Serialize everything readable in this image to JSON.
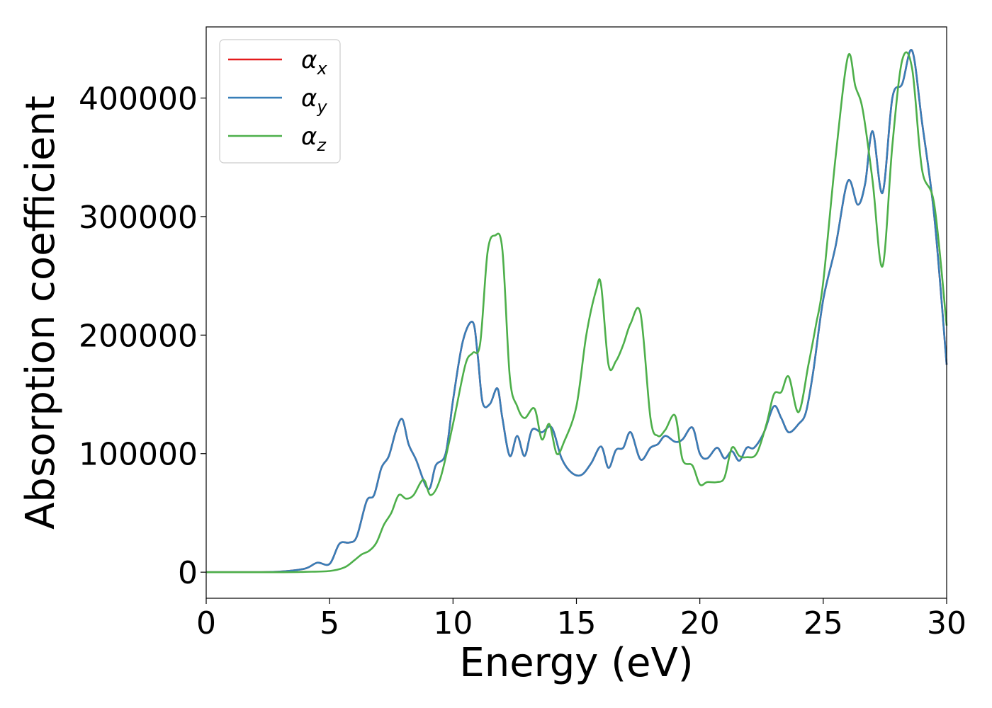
{
  "chart_data": {
    "type": "line",
    "xlabel": "Energy (eV)",
    "ylabel": "Absorption coefficient",
    "xlim": [
      0,
      30
    ],
    "ylim": [
      -22000,
      460000
    ],
    "xticks": [
      0,
      5,
      10,
      15,
      20,
      25,
      30
    ],
    "yticks": [
      0,
      100000,
      200000,
      300000,
      400000
    ],
    "xtick_labels": [
      "0",
      "5",
      "10",
      "15",
      "20",
      "25",
      "30"
    ],
    "ytick_labels": [
      "0",
      "100000",
      "200000",
      "300000",
      "400000"
    ],
    "grid": false,
    "legend": {
      "placement": "top-left",
      "entries": [
        {
          "base": "α",
          "sub": "x"
        },
        {
          "base": "α",
          "sub": "y"
        },
        {
          "base": "α",
          "sub": "z"
        }
      ]
    },
    "series": [
      {
        "name": "αx",
        "color": "#e41a1c",
        "x": [
          0,
          2,
          3,
          4,
          4.5,
          5,
          5.4,
          5.8,
          6.1,
          6.5,
          6.8,
          7.1,
          7.4,
          7.7,
          7.95,
          8.2,
          8.5,
          9.0,
          9.3,
          9.7,
          10.0,
          10.4,
          10.8,
          11.0,
          11.2,
          11.5,
          11.8,
          12.0,
          12.3,
          12.6,
          12.9,
          13.2,
          13.6,
          14.0,
          14.4,
          14.8,
          15.2,
          15.6,
          16.0,
          16.3,
          16.6,
          16.9,
          17.2,
          17.6,
          18.0,
          18.3,
          18.6,
          19.0,
          19.3,
          19.7,
          20.0,
          20.3,
          20.7,
          21.0,
          21.3,
          21.6,
          21.9,
          22.2,
          22.6,
          23.0,
          23.3,
          23.6,
          24.0,
          24.3,
          24.6,
          25.0,
          25.5,
          26.0,
          26.4,
          26.7,
          27.0,
          27.4,
          27.8,
          28.2,
          28.6,
          29.0,
          29.5,
          30.0
        ],
        "y": [
          0,
          0,
          500,
          3000,
          8000,
          7000,
          24000,
          25000,
          30000,
          60000,
          65000,
          88000,
          98000,
          120000,
          129000,
          108000,
          95000,
          70000,
          90000,
          100000,
          145000,
          195000,
          211000,
          183000,
          143000,
          142000,
          155000,
          130000,
          98000,
          115000,
          98000,
          120000,
          118000,
          122000,
          96000,
          84000,
          82000,
          92000,
          106000,
          88000,
          103000,
          105000,
          118000,
          95000,
          105000,
          108000,
          115000,
          110000,
          112000,
          122000,
          100000,
          96000,
          105000,
          96000,
          102000,
          94000,
          105000,
          105000,
          118000,
          140000,
          130000,
          118000,
          125000,
          135000,
          170000,
          230000,
          275000,
          330000,
          310000,
          328000,
          372000,
          320000,
          400000,
          412000,
          440000,
          380000,
          300000,
          175000
        ]
      },
      {
        "name": "αy",
        "color": "#377eb8",
        "x": [
          0,
          2,
          3,
          4,
          4.5,
          5,
          5.4,
          5.8,
          6.1,
          6.5,
          6.8,
          7.1,
          7.4,
          7.7,
          7.95,
          8.2,
          8.5,
          9.0,
          9.3,
          9.7,
          10.0,
          10.4,
          10.8,
          11.0,
          11.2,
          11.5,
          11.8,
          12.0,
          12.3,
          12.6,
          12.9,
          13.2,
          13.6,
          14.0,
          14.4,
          14.8,
          15.2,
          15.6,
          16.0,
          16.3,
          16.6,
          16.9,
          17.2,
          17.6,
          18.0,
          18.3,
          18.6,
          19.0,
          19.3,
          19.7,
          20.0,
          20.3,
          20.7,
          21.0,
          21.3,
          21.6,
          21.9,
          22.2,
          22.6,
          23.0,
          23.3,
          23.6,
          24.0,
          24.3,
          24.6,
          25.0,
          25.5,
          26.0,
          26.4,
          26.7,
          27.0,
          27.4,
          27.8,
          28.2,
          28.6,
          29.0,
          29.5,
          30.0
        ],
        "y": [
          0,
          0,
          500,
          3000,
          8000,
          7000,
          24000,
          25000,
          30000,
          60000,
          65000,
          88000,
          98000,
          120000,
          129000,
          108000,
          95000,
          70000,
          90000,
          100000,
          145000,
          195000,
          211000,
          183000,
          143000,
          142000,
          155000,
          130000,
          98000,
          115000,
          98000,
          120000,
          118000,
          122000,
          96000,
          84000,
          82000,
          92000,
          106000,
          88000,
          103000,
          105000,
          118000,
          95000,
          105000,
          108000,
          115000,
          110000,
          112000,
          122000,
          100000,
          96000,
          105000,
          96000,
          102000,
          94000,
          105000,
          105000,
          118000,
          140000,
          130000,
          118000,
          125000,
          135000,
          170000,
          230000,
          275000,
          330000,
          310000,
          328000,
          372000,
          320000,
          400000,
          412000,
          440000,
          380000,
          300000,
          175000
        ]
      },
      {
        "name": "αz",
        "color": "#4daf4a",
        "x": [
          0,
          3,
          4,
          5,
          5.6,
          6.0,
          6.3,
          6.6,
          6.9,
          7.2,
          7.5,
          7.8,
          8.1,
          8.4,
          8.8,
          9.1,
          9.5,
          10.0,
          10.5,
          10.8,
          11.1,
          11.4,
          11.7,
          12.0,
          12.3,
          12.6,
          12.9,
          13.3,
          13.6,
          13.9,
          14.2,
          14.5,
          15.0,
          15.4,
          15.8,
          16.0,
          16.3,
          16.6,
          16.9,
          17.2,
          17.6,
          18.0,
          18.3,
          18.6,
          19.0,
          19.3,
          19.7,
          20.0,
          20.3,
          20.7,
          21.0,
          21.3,
          21.6,
          21.9,
          22.3,
          22.7,
          23.0,
          23.3,
          23.6,
          24.0,
          24.4,
          24.7,
          25.0,
          25.5,
          26.0,
          26.3,
          26.6,
          27.0,
          27.4,
          27.8,
          28.2,
          28.6,
          29.0,
          29.5,
          30.0
        ],
        "y": [
          0,
          0,
          300,
          1000,
          4000,
          10000,
          15000,
          18000,
          25000,
          40000,
          50000,
          65000,
          62000,
          65000,
          78000,
          65000,
          80000,
          125000,
          175000,
          185000,
          193000,
          270000,
          284000,
          272000,
          165000,
          140000,
          130000,
          138000,
          112000,
          125000,
          100000,
          110000,
          140000,
          200000,
          238000,
          242000,
          175000,
          178000,
          192000,
          210000,
          218000,
          130000,
          115000,
          120000,
          132000,
          95000,
          90000,
          74000,
          76000,
          76000,
          80000,
          105000,
          98000,
          97000,
          100000,
          125000,
          150000,
          152000,
          165000,
          135000,
          175000,
          208000,
          245000,
          350000,
          435000,
          410000,
          390000,
          330000,
          258000,
          360000,
          432000,
          425000,
          340000,
          310000,
          208000
        ]
      }
    ]
  }
}
